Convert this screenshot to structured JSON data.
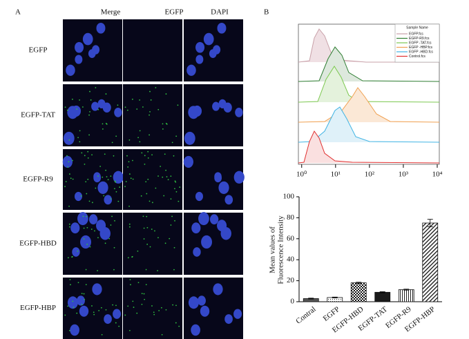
{
  "panel_a": {
    "label": "A",
    "columns": [
      "Merge",
      "EGFP",
      "DAPI"
    ],
    "rows": [
      "EGFP",
      "EGFP-TAT",
      "EGFP-R9",
      "EGFP-HBD",
      "EGFP-HBP"
    ]
  },
  "panel_b": {
    "label": "B",
    "flow": {
      "legend_title": "Sample Name",
      "scale": "log",
      "xlim": [
        0.8,
        10000
      ],
      "xticks": [
        {
          "value": 1,
          "label": "10⁰"
        },
        {
          "value": 10,
          "label": "10¹"
        },
        {
          "value": 100,
          "label": "10²"
        },
        {
          "value": 1000,
          "label": "10³"
        },
        {
          "value": 10000,
          "label": "10⁴"
        }
      ],
      "legend": [
        {
          "name": "EGFP.fcs",
          "color": "#c8a0a8"
        },
        {
          "name": "EGFP-R9.fcs",
          "color": "#2e7d32"
        },
        {
          "name": "EGFP -TAT.fcs",
          "color": "#7cc850"
        },
        {
          "name": "EGFP -HBP.fcs",
          "color": "#f0a050"
        },
        {
          "name": "EGFP -HBD.fcs",
          "color": "#40b4e4"
        },
        {
          "name": "Control.fcs",
          "color": "#e03030"
        }
      ]
    }
  },
  "chart_data": {
    "type": "bar",
    "y_label": [
      "Mean values of",
      "Fluorescence Intensity"
    ],
    "categories": [
      "Contral",
      "EGFP",
      "EGFP-HBD",
      "EGFP-TAT",
      "EGFP-R9",
      "EGFP-HBP"
    ],
    "values": [
      3,
      4,
      18,
      9,
      11.5,
      75
    ],
    "errors": [
      0.4,
      0.4,
      0.6,
      0.5,
      0.5,
      3.5
    ],
    "patterns": [
      "gray",
      "dots",
      "checks",
      "black",
      "vlines",
      "diagonal"
    ],
    "ylim": [
      0,
      100
    ],
    "yticks": [
      0,
      20,
      40,
      60,
      80,
      100
    ]
  }
}
